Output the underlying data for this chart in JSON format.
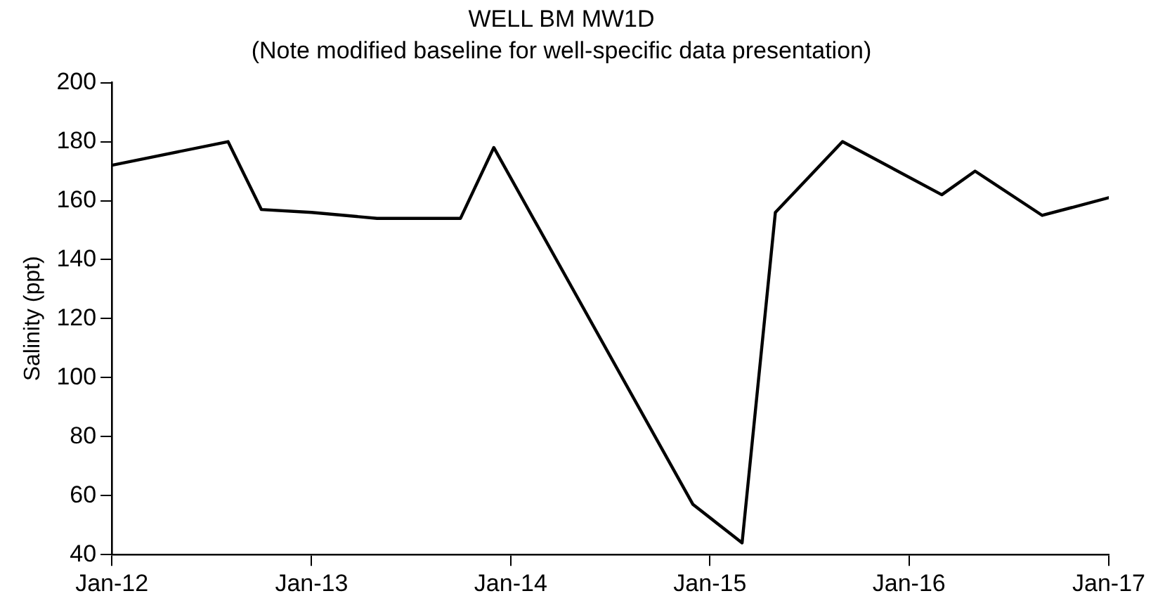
{
  "chart_data": {
    "type": "line",
    "title": "WELL BM MW1D",
    "subtitle": "(Note modified baseline for well-specific data presentation)",
    "ylabel": "Salinity (ppt)",
    "x": [
      "2012-01",
      "2012-08",
      "2012-10",
      "2013-01",
      "2013-05",
      "2013-10",
      "2013-12",
      "2014-12",
      "2015-03",
      "2015-05",
      "2015-09",
      "2016-03",
      "2016-05",
      "2016-09",
      "2017-01"
    ],
    "series": [
      {
        "color": "#000000",
        "values": [
          172,
          180,
          157,
          156,
          154,
          154,
          178,
          57,
          44,
          156,
          180,
          162,
          170,
          155,
          161
        ]
      }
    ],
    "xlim": [
      "2012-01",
      "2017-01"
    ],
    "xticks": [
      {
        "value": "2012-01",
        "label": "Jan-12"
      },
      {
        "value": "2013-01",
        "label": "Jan-13"
      },
      {
        "value": "2014-01",
        "label": "Jan-14"
      },
      {
        "value": "2015-01",
        "label": "Jan-15"
      },
      {
        "value": "2016-01",
        "label": "Jan-16"
      },
      {
        "value": "2017-01",
        "label": "Jan-17"
      }
    ],
    "ylim": [
      40,
      200
    ],
    "yticks": [
      40,
      60,
      80,
      100,
      120,
      140,
      160,
      180,
      200
    ],
    "grid": false,
    "legend": false,
    "marker": "none",
    "line_style": "solid"
  }
}
